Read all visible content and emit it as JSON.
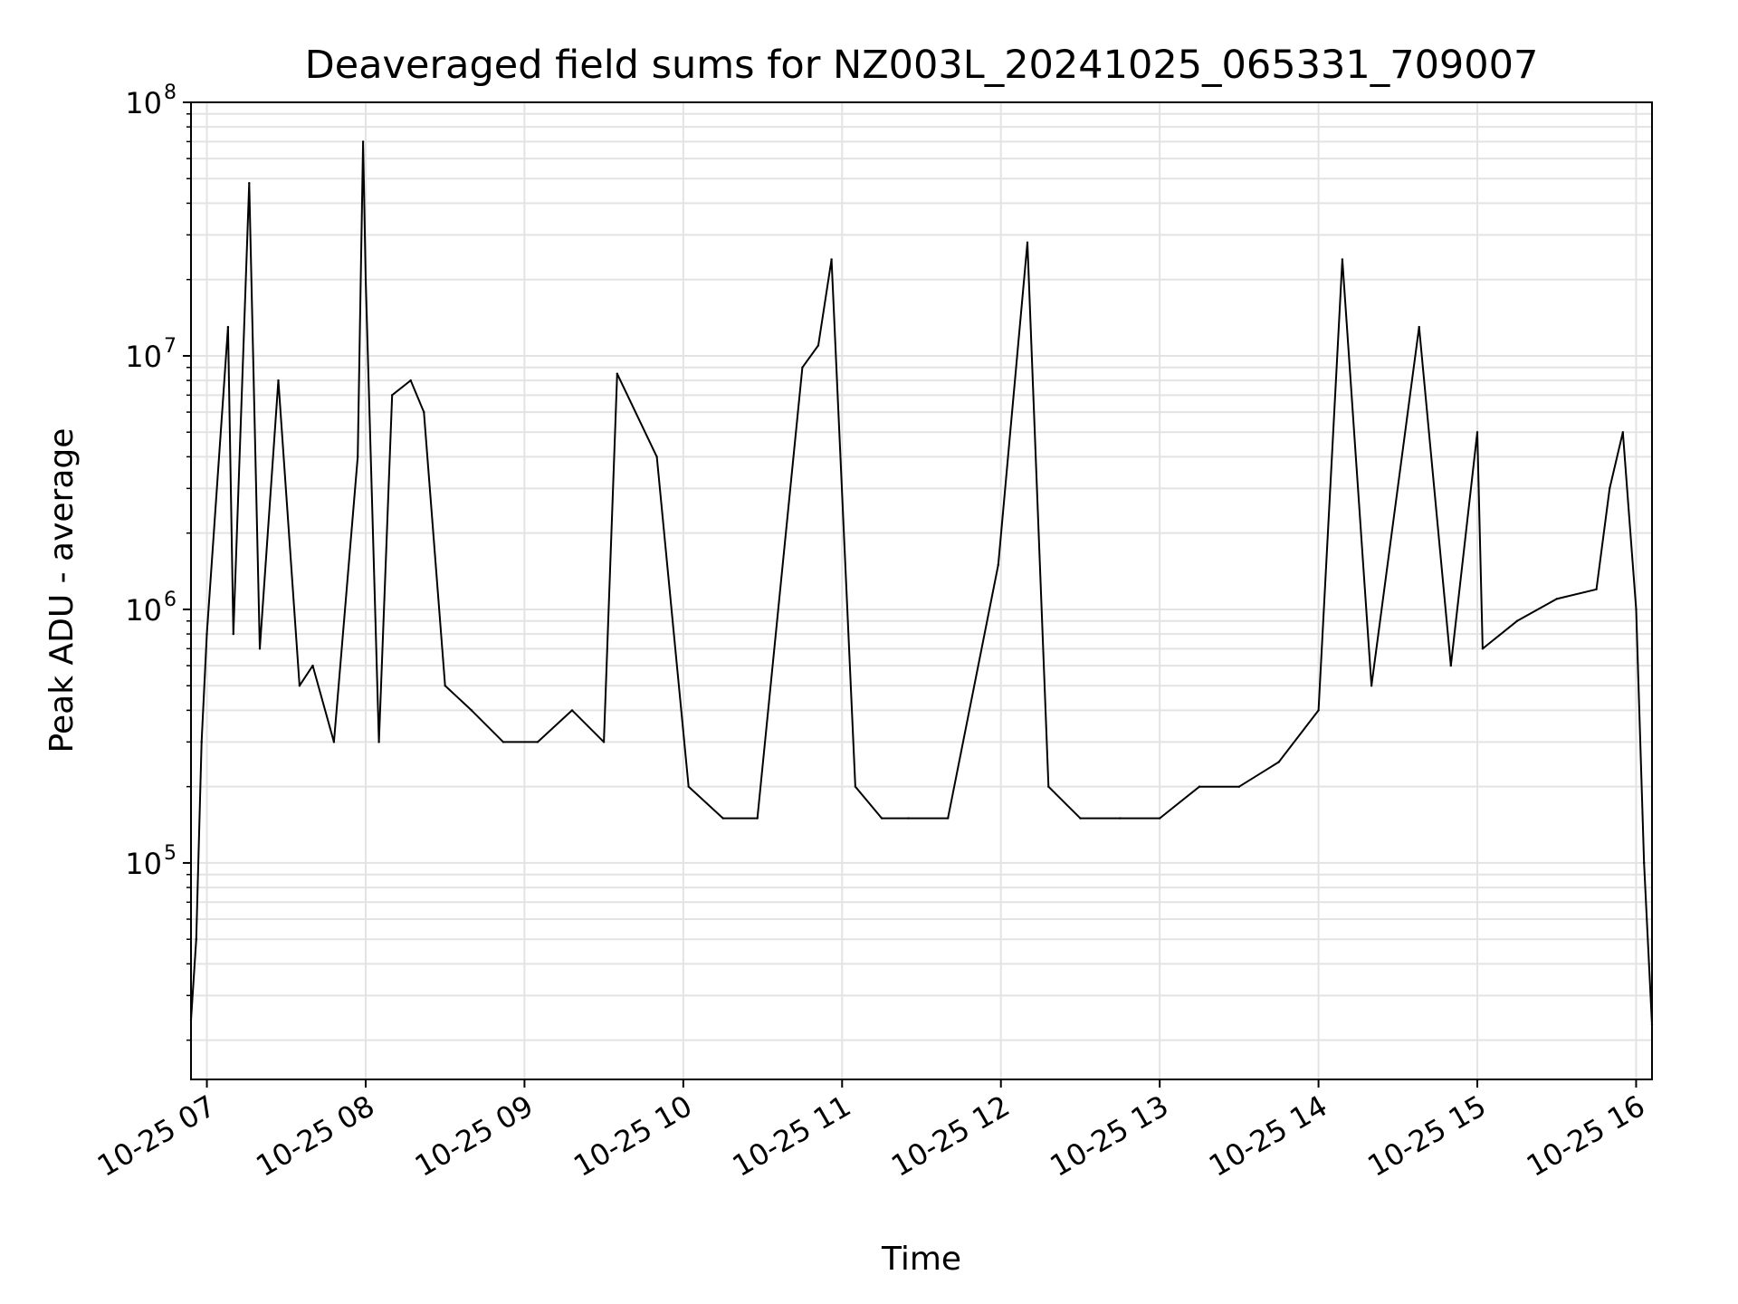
{
  "chart_data": {
    "type": "line",
    "title": "Deaveraged field sums for NZ003L_20241025_065331_709007",
    "xlabel": "Time",
    "ylabel": "Peak ADU - average",
    "x_axis": {
      "kind": "datetime",
      "range": [
        "2024-10-25 06:54",
        "2024-10-25 16:06"
      ],
      "tick_values": [
        "2024-10-25 07:00",
        "2024-10-25 08:00",
        "2024-10-25 09:00",
        "2024-10-25 10:00",
        "2024-10-25 11:00",
        "2024-10-25 12:00",
        "2024-10-25 13:00",
        "2024-10-25 14:00",
        "2024-10-25 15:00",
        "2024-10-25 16:00"
      ],
      "tick_labels": [
        "10-25 07",
        "10-25 08",
        "10-25 09",
        "10-25 10",
        "10-25 11",
        "10-25 12",
        "10-25 13",
        "10-25 14",
        "10-25 15",
        "10-25 16"
      ]
    },
    "y_axis": {
      "scale": "log",
      "ylim": [
        14000,
        100000000
      ],
      "tick_values": [
        100000,
        1000000,
        10000000,
        100000000
      ],
      "tick_labels": [
        {
          "base": "10",
          "exp": "5"
        },
        {
          "base": "10",
          "exp": "6"
        },
        {
          "base": "10",
          "exp": "7"
        },
        {
          "base": "10",
          "exp": "8"
        }
      ]
    },
    "grid": true,
    "line_color": "#000000",
    "series": [
      {
        "x": [
          "2024-10-25 06:54",
          "2024-10-25 06:56",
          "2024-10-25 06:58",
          "2024-10-25 07:00",
          "2024-10-25 07:08",
          "2024-10-25 07:10",
          "2024-10-25 07:16",
          "2024-10-25 07:20",
          "2024-10-25 07:27",
          "2024-10-25 07:35",
          "2024-10-25 07:40",
          "2024-10-25 07:48",
          "2024-10-25 07:57",
          "2024-10-25 07:59",
          "2024-10-25 08:00",
          "2024-10-25 08:05",
          "2024-10-25 08:10",
          "2024-10-25 08:17",
          "2024-10-25 08:22",
          "2024-10-25 08:30",
          "2024-10-25 08:40",
          "2024-10-25 08:52",
          "2024-10-25 09:05",
          "2024-10-25 09:18",
          "2024-10-25 09:30",
          "2024-10-25 09:35",
          "2024-10-25 09:50",
          "2024-10-25 10:02",
          "2024-10-25 10:15",
          "2024-10-25 10:28",
          "2024-10-25 10:45",
          "2024-10-25 10:51",
          "2024-10-25 10:56",
          "2024-10-25 11:05",
          "2024-10-25 11:15",
          "2024-10-25 11:25",
          "2024-10-25 11:40",
          "2024-10-25 11:59",
          "2024-10-25 12:10",
          "2024-10-25 12:18",
          "2024-10-25 12:30",
          "2024-10-25 12:45",
          "2024-10-25 13:00",
          "2024-10-25 13:15",
          "2024-10-25 13:30",
          "2024-10-25 13:45",
          "2024-10-25 14:00",
          "2024-10-25 14:09",
          "2024-10-25 14:20",
          "2024-10-25 14:38",
          "2024-10-25 14:50",
          "2024-10-25 15:00",
          "2024-10-25 15:02",
          "2024-10-25 15:15",
          "2024-10-25 15:30",
          "2024-10-25 15:45",
          "2024-10-25 15:50",
          "2024-10-25 15:55",
          "2024-10-25 16:00",
          "2024-10-25 16:03",
          "2024-10-25 16:06"
        ],
        "y": [
          24000,
          50000,
          300000,
          800000,
          13000000,
          800000,
          48000000,
          700000,
          8000000,
          500000,
          600000,
          300000,
          4000000,
          70000000,
          20000000,
          300000,
          7000000,
          8000000,
          6000000,
          500000,
          400000,
          300000,
          300000,
          400000,
          300000,
          8500000,
          4000000,
          200000,
          150000,
          150000,
          9000000,
          11000000,
          24000000,
          200000,
          150000,
          150000,
          150000,
          1500000,
          28000000,
          200000,
          150000,
          150000,
          150000,
          200000,
          200000,
          250000,
          400000,
          24000000,
          500000,
          13000000,
          600000,
          5000000,
          700000,
          900000,
          1100000,
          1200000,
          3000000,
          5000000,
          1000000,
          100000,
          23000
        ]
      }
    ]
  }
}
